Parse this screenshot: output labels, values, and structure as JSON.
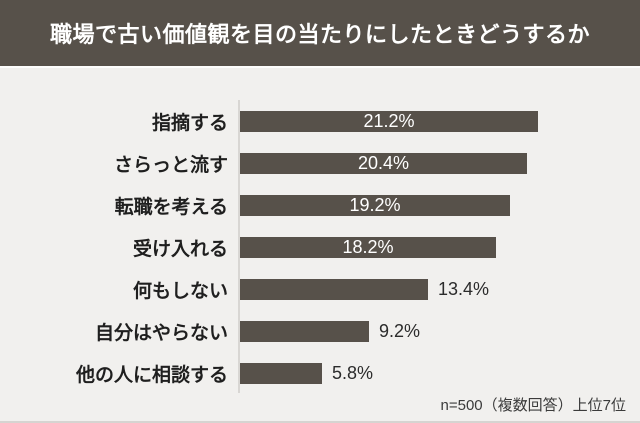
{
  "title": "職場で古い価値観を目の当たりにしたときどうするか",
  "footnote": "n=500（複数回答）上位7位",
  "colors": {
    "header_bg": "#57514a",
    "bar": "#57514a",
    "background": "#f1f0ee",
    "axis": "#d8d6d3",
    "title_text": "#ffffff",
    "value_inside_text": "#ffffff",
    "label_text": "#1f1f1f",
    "value_outside_text": "#2b2b2b",
    "footnote_text": "#3b3b3b"
  },
  "chart_data": {
    "type": "bar",
    "orientation": "horizontal",
    "title": "職場で古い価値観を目の当たりにしたときどうするか",
    "categories": [
      "指摘する",
      "さらっと流す",
      "転職を考える",
      "受け入れる",
      "何もしない",
      "自分はやらない",
      "他の人に相談する"
    ],
    "values": [
      21.2,
      20.4,
      19.2,
      18.2,
      13.4,
      9.2,
      5.8
    ],
    "value_labels": [
      "21.2%",
      "20.4%",
      "19.2%",
      "18.2%",
      "13.4%",
      "9.2%",
      "5.8%"
    ],
    "value_label_position": [
      "inside",
      "inside",
      "inside",
      "inside",
      "outside",
      "outside",
      "outside"
    ],
    "xlabel": "",
    "ylabel": "",
    "xlim": [
      0,
      21.2
    ],
    "grid": false,
    "legend": null,
    "footnote": "n=500（複数回答）上位7位"
  }
}
